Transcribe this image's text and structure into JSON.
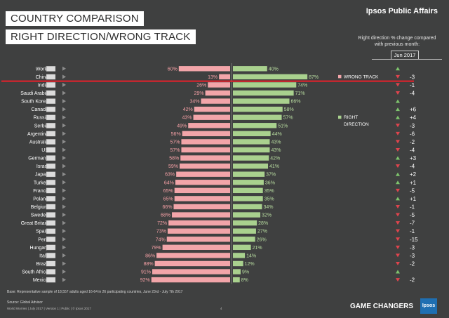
{
  "title_line1": "COUNTRY COMPARISON",
  "title_line2": "RIGHT DIRECTION/WRONG TRACK",
  "brand": "Ipsos Public Affairs",
  "change_note": "Right direction % change compared with previous month:",
  "month_label": "Jun 2017",
  "footer": {
    "base_note": "Base: Representative sample of 18,557 adults aged 16-64 in 26 participating countries, June 23rd - July 7th 2017",
    "source": "Source: Global Advisor",
    "meta": "World Worries | July 2017 | Version 1 | Public | © Ipsos 2017",
    "page_number": "4",
    "tagline": "GAME CHANGERS",
    "logo_text": "Ipsos"
  },
  "colors": {
    "background": "#3f4040",
    "wrong_track": "#f2a5a9",
    "wrong_track_text": "#f7a1a6",
    "right_direction": "#a9d18e",
    "right_direction_text": "#b8dca0",
    "highlight_line": "#e8202a",
    "up_arrow": "#7ec46d",
    "down_arrow": "#e0444d"
  },
  "chart_data": {
    "type": "bar",
    "title": "Right direction / wrong track by country",
    "series": [
      {
        "name": "WRONG TRACK",
        "values": [
          60,
          13,
          26,
          29,
          34,
          42,
          43,
          49,
          56,
          57,
          57,
          58,
          59,
          63,
          64,
          65,
          65,
          66,
          68,
          72,
          73,
          74,
          79,
          86,
          88,
          91,
          92
        ]
      },
      {
        "name": "RIGHT DIRECTION",
        "values": [
          40,
          87,
          74,
          71,
          66,
          58,
          57,
          51,
          44,
          43,
          43,
          42,
          41,
          37,
          36,
          35,
          35,
          34,
          32,
          28,
          27,
          26,
          21,
          14,
          12,
          9,
          8
        ]
      }
    ],
    "categories": [
      "World",
      "China",
      "India",
      "Saudi Arabia",
      "South Korea",
      "Canada",
      "Russia",
      "Serbia",
      "Argentina",
      "Australia",
      "US",
      "Germany",
      "Israel",
      "Japan",
      "Turkey",
      "France",
      "Poland",
      "Belgium",
      "Sweden",
      "Great Britain",
      "Spain",
      "Peru",
      "Hungary",
      "Italy",
      "Brazil",
      "South Africa",
      "Mexico"
    ],
    "value_labels_wrong": [
      "60%",
      "13%",
      "26%",
      "29%",
      "34%",
      "42%",
      "43%",
      "49%",
      "56%",
      "57%",
      "57%",
      "58%",
      "59%",
      "63%",
      "64%",
      "65%",
      "65%",
      "66%",
      "68%",
      "72%",
      "73%",
      "74%",
      "79%",
      "86%",
      "88%",
      "91%",
      "92%"
    ],
    "value_labels_right": [
      "40%",
      "87%",
      "74%",
      "71%",
      "66%",
      "58%",
      "57%",
      "51%",
      "44%",
      "43%",
      "43%",
      "42%",
      "41%",
      "37%",
      "36%",
      "35%",
      "35%",
      "34%",
      "32%",
      "28%",
      "27%",
      "26%",
      "21%",
      "14%",
      "12%",
      "9%",
      "8%"
    ],
    "change": [
      "",
      "-3",
      "-1",
      "-4",
      "",
      "+6",
      "+4",
      "-3",
      "-6",
      "-2",
      "-4",
      "+3",
      "-4",
      "+2",
      "+1",
      "-5",
      "+1",
      "-1",
      "-5",
      "-7",
      "-1",
      "-15",
      "-3",
      "-3",
      "-2",
      "",
      "-2"
    ],
    "change_direction": [
      "up",
      "down",
      "down",
      "down",
      "up",
      "up",
      "up",
      "down",
      "down",
      "down",
      "down",
      "up",
      "down",
      "up",
      "up",
      "down",
      "up",
      "down",
      "down",
      "down",
      "down",
      "down",
      "down",
      "down",
      "down",
      "up",
      "down"
    ],
    "legend": [
      "WRONG TRACK",
      "RIGHT DIRECTION"
    ],
    "legend_right_line1": "RIGHT",
    "legend_right_line2": "DIRECTION",
    "ylim": [
      0,
      100
    ]
  }
}
